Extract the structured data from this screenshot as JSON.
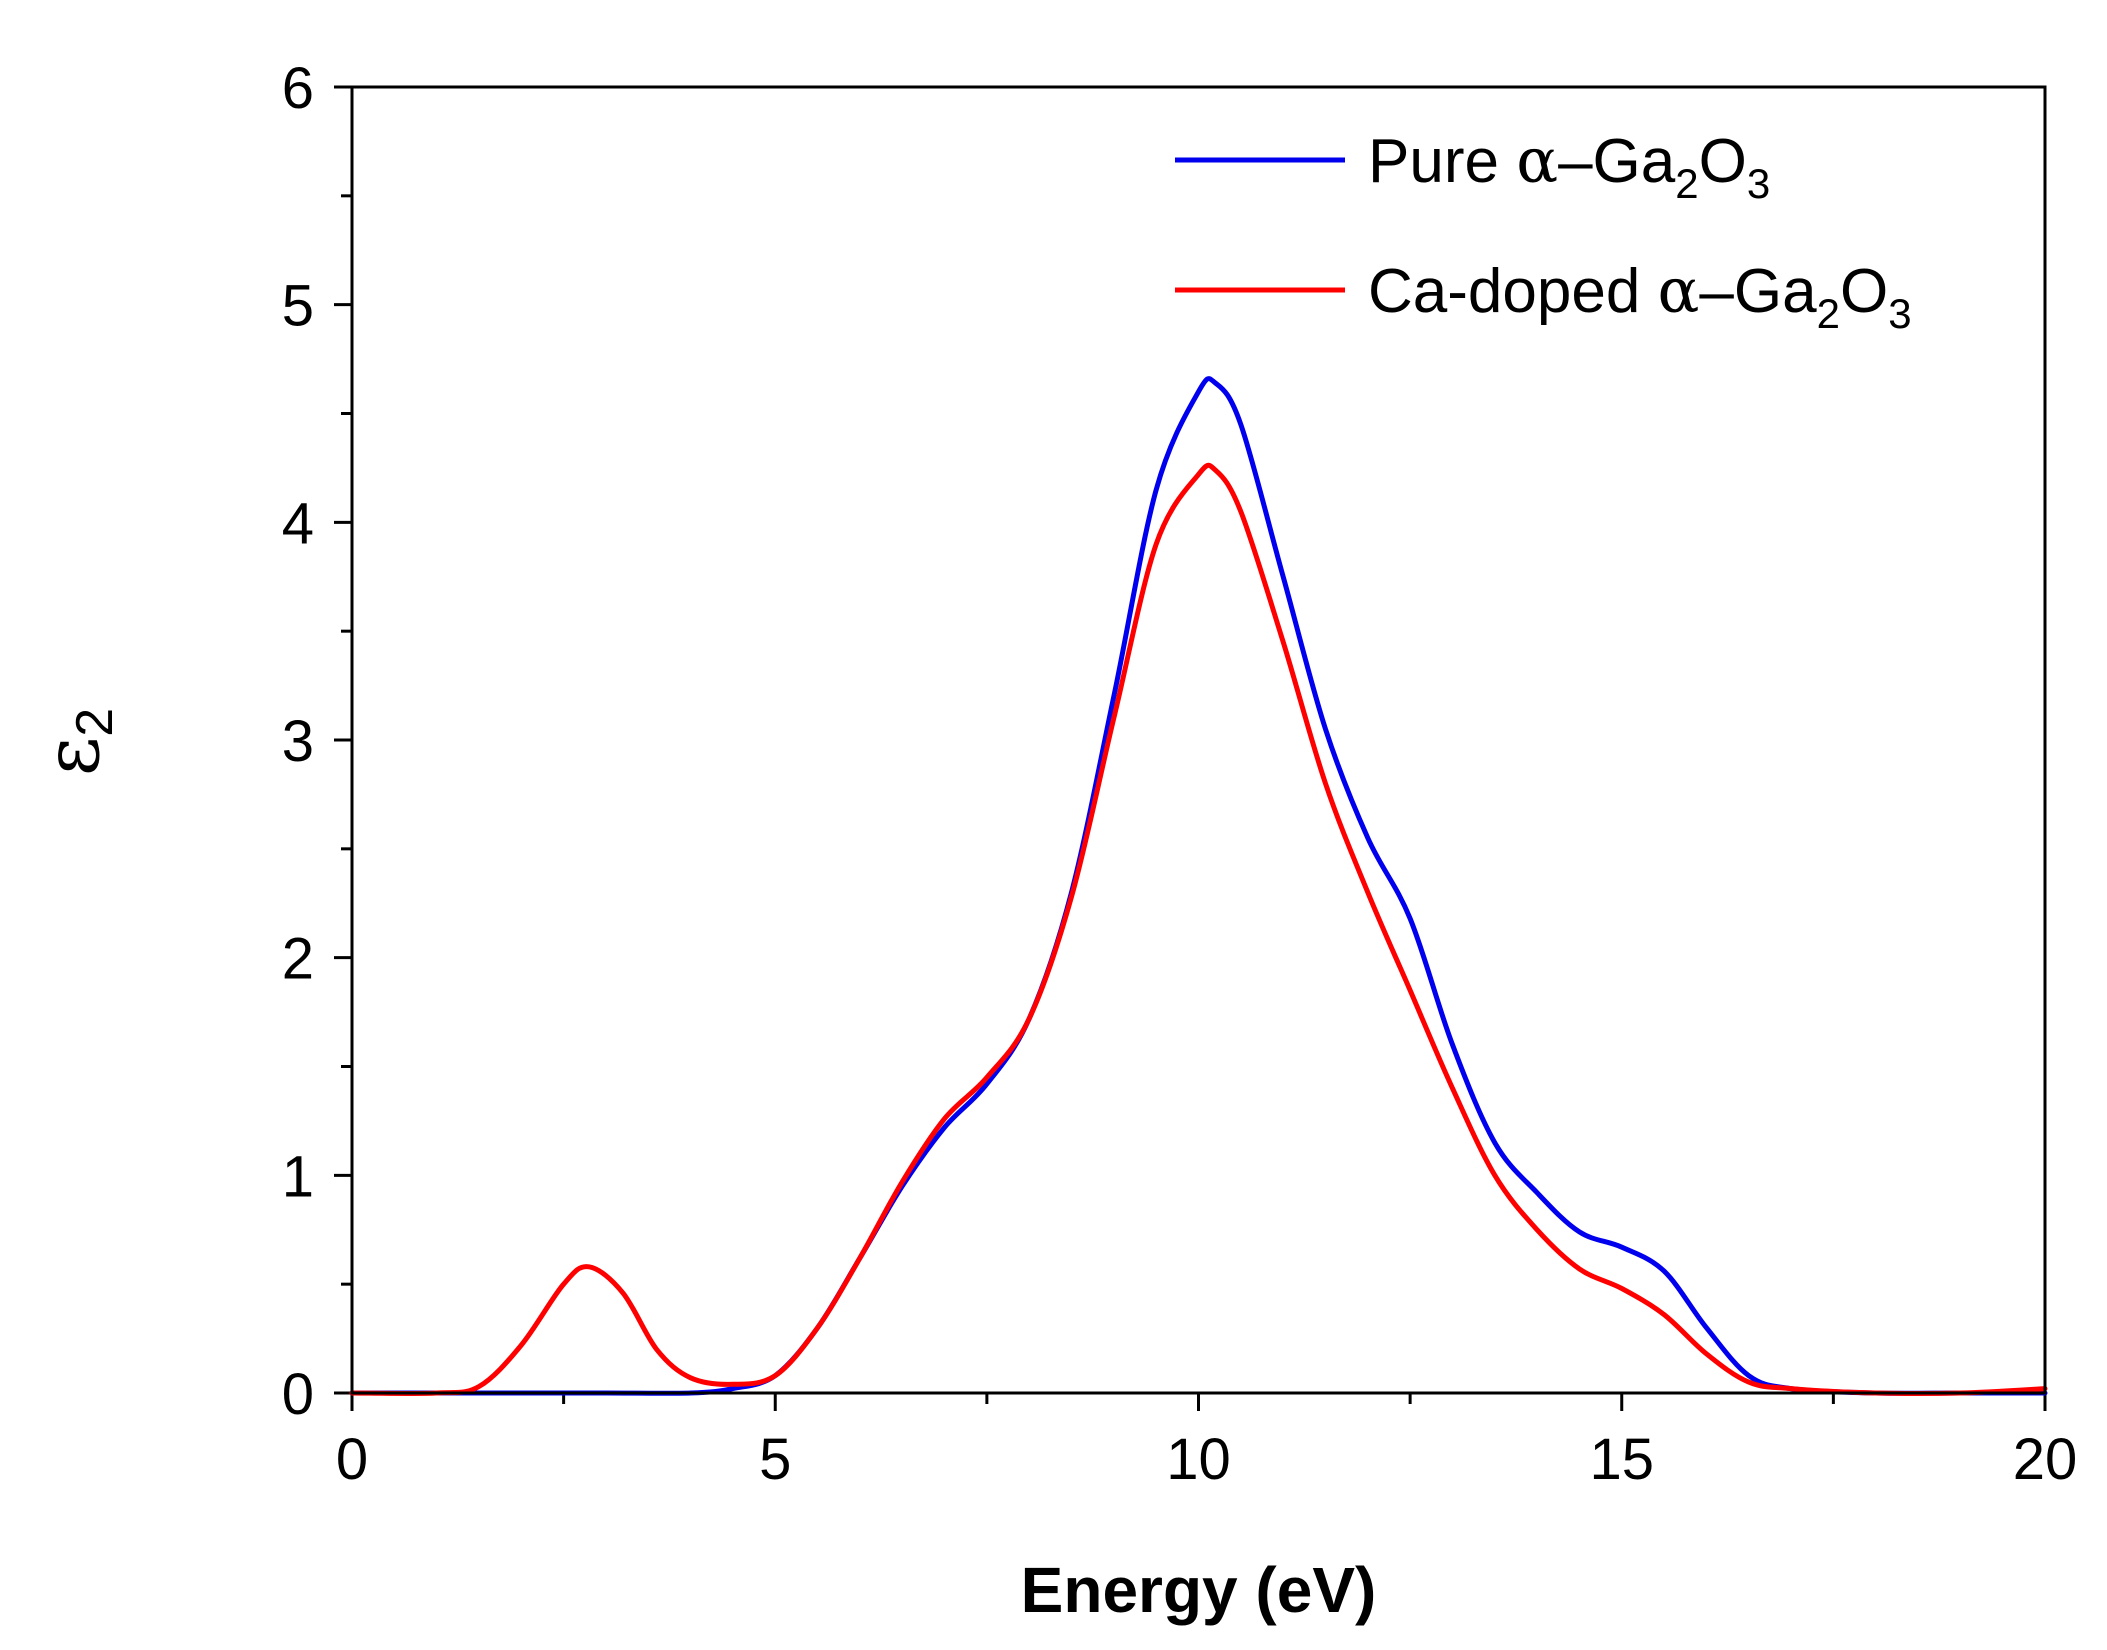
{
  "chart_data": {
    "type": "line",
    "title": "",
    "xlabel": "Energy (eV)",
    "ylabel": {
      "main": "ε",
      "sub": "2"
    },
    "xlim": [
      0,
      20
    ],
    "ylim": [
      0,
      6
    ],
    "xticks": [
      0,
      5,
      10,
      15,
      20
    ],
    "yticks": [
      0,
      1,
      2,
      3,
      4,
      5,
      6
    ],
    "xtick_labels": [
      "0",
      "5",
      "10",
      "15",
      "20"
    ],
    "ytick_labels": [
      "0",
      "1",
      "2",
      "3",
      "4",
      "5",
      "6"
    ],
    "legend_position": "top-right",
    "series": [
      {
        "name": "Pure α–Ga2O3",
        "legend": {
          "prefix": "Pure ",
          "alpha": "α",
          "dash": "–Ga",
          "sub1": "2",
          "mid": "O",
          "sub2": "3"
        },
        "color": "#0000ee",
        "x": [
          0,
          1,
          2,
          3,
          4,
          4.5,
          5,
          5.5,
          6,
          6.5,
          7,
          7.5,
          8,
          8.5,
          9,
          9.5,
          10,
          10.2,
          10.5,
          11,
          11.5,
          12,
          12.5,
          13,
          13.5,
          14,
          14.5,
          15,
          15.5,
          16,
          16.5,
          17,
          18,
          19,
          20
        ],
        "y": [
          0,
          0,
          0,
          0,
          0,
          0.02,
          0.08,
          0.3,
          0.62,
          0.95,
          1.22,
          1.42,
          1.72,
          2.3,
          3.2,
          4.15,
          4.6,
          4.64,
          4.45,
          3.75,
          3.05,
          2.55,
          2.18,
          1.6,
          1.15,
          0.92,
          0.74,
          0.67,
          0.56,
          0.3,
          0.08,
          0.02,
          0,
          0,
          0
        ]
      },
      {
        "name": "Ca-doped α–Ga2O3",
        "legend": {
          "prefix": "Ca-doped ",
          "alpha": "α",
          "dash": "–Ga",
          "sub1": "2",
          "mid": "O",
          "sub2": "3"
        },
        "color": "#ff0000",
        "x": [
          0,
          1,
          1.5,
          2,
          2.5,
          2.8,
          3.2,
          3.6,
          4,
          4.5,
          5,
          5.5,
          6,
          6.5,
          7,
          7.5,
          8,
          8.5,
          9,
          9.5,
          10,
          10.2,
          10.5,
          11,
          11.5,
          12,
          12.5,
          13,
          13.5,
          14,
          14.5,
          15,
          15.5,
          16,
          16.5,
          17,
          18,
          19,
          20
        ],
        "y": [
          0,
          0,
          0.03,
          0.22,
          0.5,
          0.58,
          0.46,
          0.2,
          0.07,
          0.04,
          0.08,
          0.3,
          0.62,
          0.97,
          1.26,
          1.45,
          1.72,
          2.28,
          3.1,
          3.9,
          4.22,
          4.24,
          4.05,
          3.45,
          2.8,
          2.3,
          1.85,
          1.4,
          1.0,
          0.75,
          0.57,
          0.48,
          0.36,
          0.18,
          0.05,
          0.02,
          0,
          0,
          0.02
        ]
      }
    ]
  }
}
